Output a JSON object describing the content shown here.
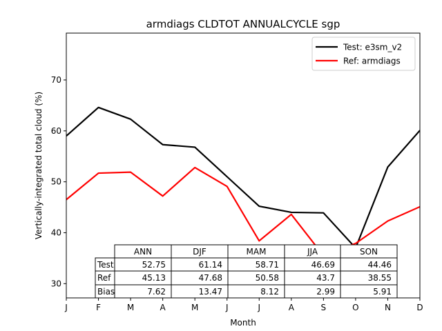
{
  "chart_data": {
    "type": "line",
    "title": "armdiags CLDTOT ANNUALCYCLE sgp",
    "xlabel": "Month",
    "ylabel": "Vertically-integrated total cloud (%)",
    "categories": [
      "J",
      "F",
      "M",
      "A",
      "M",
      "J",
      "J",
      "A",
      "S",
      "O",
      "N",
      "D"
    ],
    "ylim": [
      27.2,
      79.2
    ],
    "yticks": [
      30,
      40,
      50,
      60,
      70
    ],
    "grid": false,
    "legend_position": "upper-right",
    "series": [
      {
        "name": "Test: e3sm_v2",
        "color": "#000000",
        "values": [
          59.0,
          64.6,
          62.3,
          57.3,
          56.8,
          51.0,
          45.2,
          44.0,
          43.9,
          37.0,
          52.9,
          60.1
        ]
      },
      {
        "name": "Ref: armdiags",
        "color": "#ff0000",
        "values": [
          46.5,
          51.7,
          51.9,
          47.2,
          52.8,
          49.1,
          38.4,
          43.6,
          35.5,
          37.9,
          42.3,
          45.1
        ]
      }
    ],
    "table": {
      "columns": [
        "ANN",
        "DJF",
        "MAM",
        "JJA",
        "SON"
      ],
      "rows": [
        {
          "label": "Test",
          "values": [
            "52.75",
            "61.14",
            "58.71",
            "46.69",
            "44.46"
          ]
        },
        {
          "label": "Ref",
          "values": [
            "45.13",
            "47.68",
            "50.58",
            "43.7",
            "38.55"
          ]
        },
        {
          "label": "Bias",
          "values": [
            "7.62",
            "13.47",
            "8.12",
            "2.99",
            "5.91"
          ]
        }
      ]
    }
  }
}
